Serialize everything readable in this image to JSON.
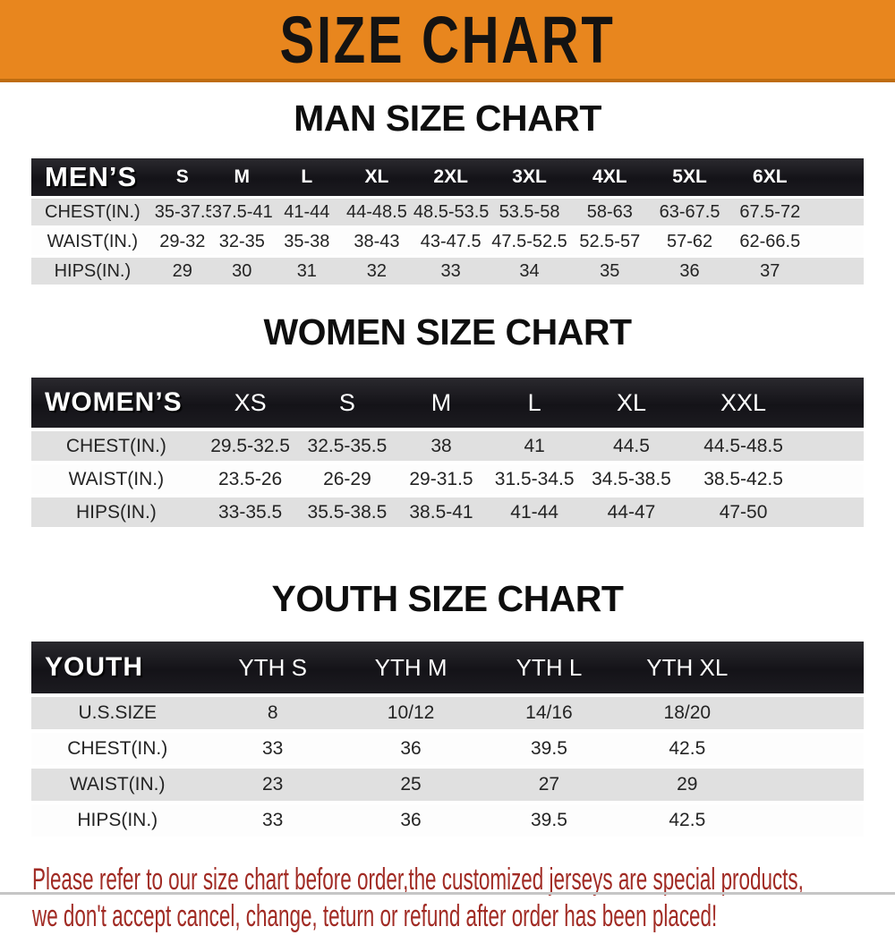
{
  "banner": {
    "title": "SIZE CHART"
  },
  "colors": {
    "banner_bg": "#E8861E",
    "banner_edge": "#BE6C10",
    "header_bar_bg": "#141318",
    "row_shade": "#E0E0E0",
    "notice_text": "#A12B24"
  },
  "chart_data": [
    {
      "type": "table",
      "title": "MAN SIZE CHART",
      "corner_label": "MEN’S",
      "columns": [
        "S",
        "M",
        "L",
        "XL",
        "2XL",
        "3XL",
        "4XL",
        "5XL",
        "6XL"
      ],
      "rows": [
        {
          "label": "CHEST(IN.)",
          "values": [
            "35-37.5",
            "37.5-41",
            "41-44",
            "44-48.5",
            "48.5-53.5",
            "53.5-58",
            "58-63",
            "63-67.5",
            "67.5-72"
          ]
        },
        {
          "label": "WAIST(IN.)",
          "values": [
            "29-32",
            "32-35",
            "35-38",
            "38-43",
            "43-47.5",
            "47.5-52.5",
            "52.5-57",
            "57-62",
            "62-66.5"
          ]
        },
        {
          "label": "HIPS(IN.)",
          "values": [
            "29",
            "30",
            "31",
            "32",
            "33",
            "34",
            "35",
            "36",
            "37"
          ]
        }
      ]
    },
    {
      "type": "table",
      "title": "WOMEN SIZE CHART",
      "corner_label": "WOMEN’S",
      "columns": [
        "XS",
        "S",
        "M",
        "L",
        "XL",
        "XXL"
      ],
      "rows": [
        {
          "label": "CHEST(IN.)",
          "values": [
            "29.5-32.5",
            "32.5-35.5",
            "38",
            "41",
            "44.5",
            "44.5-48.5"
          ]
        },
        {
          "label": "WAIST(IN.)",
          "values": [
            "23.5-26",
            "26-29",
            "29-31.5",
            "31.5-34.5",
            "34.5-38.5",
            "38.5-42.5"
          ]
        },
        {
          "label": "HIPS(IN.)",
          "values": [
            "33-35.5",
            "35.5-38.5",
            "38.5-41",
            "41-44",
            "44-47",
            "47-50"
          ]
        }
      ]
    },
    {
      "type": "table",
      "title": "YOUTH SIZE CHART",
      "corner_label": "YOUTH",
      "columns": [
        "YTH S",
        "YTH M",
        "YTH L",
        "YTH XL"
      ],
      "rows": [
        {
          "label": "U.S.SIZE",
          "values": [
            "8",
            "10/12",
            "14/16",
            "18/20"
          ]
        },
        {
          "label": "CHEST(IN.)",
          "values": [
            "33",
            "36",
            "39.5",
            "42.5"
          ]
        },
        {
          "label": "WAIST(IN.)",
          "values": [
            "23",
            "25",
            "27",
            "29"
          ]
        },
        {
          "label": "HIPS(IN.)",
          "values": [
            "33",
            "36",
            "39.5",
            "42.5"
          ]
        }
      ]
    }
  ],
  "footer": {
    "lines": [
      "Please refer to our size chart before order,the customized jerseys are special products,",
      "we don't accept cancel, change, teturn or refund after order has been placed!"
    ]
  }
}
